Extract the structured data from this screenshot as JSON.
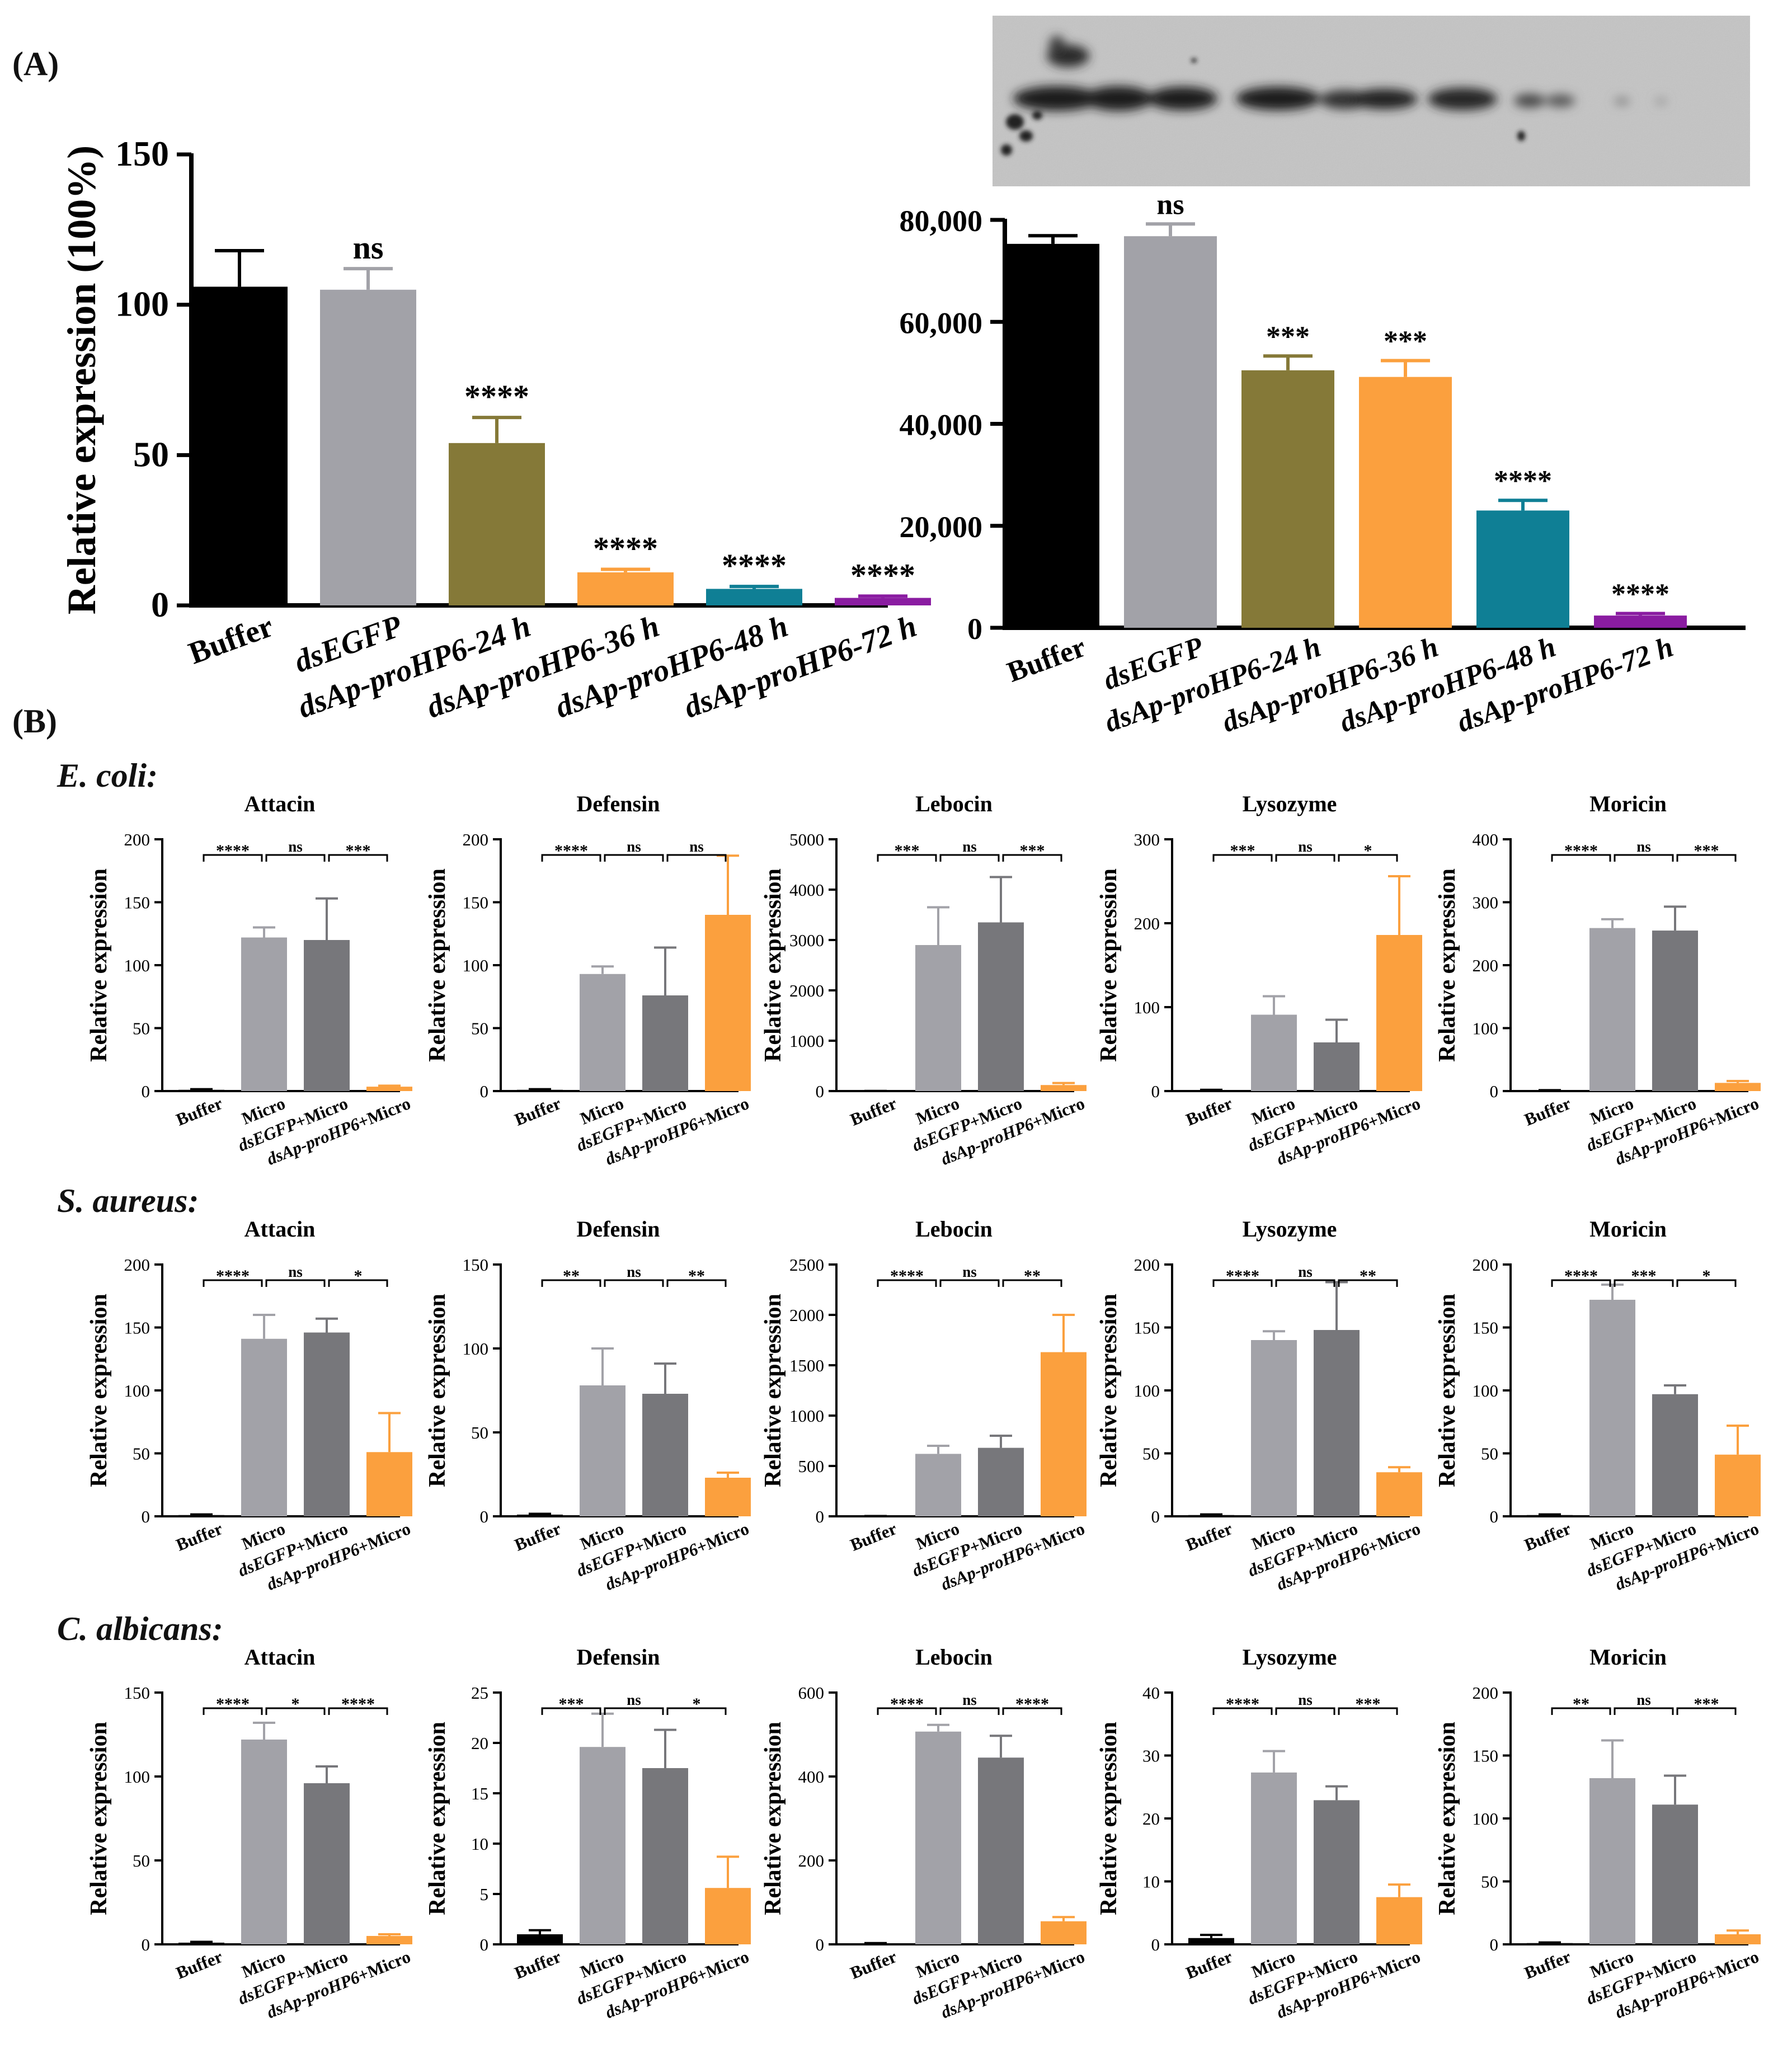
{
  "panels": {
    "a_label": "(A)",
    "b_label": "(B)"
  },
  "rows": [
    {
      "label": "E. coli",
      "colon": ":"
    },
    {
      "label": "S. aureus",
      "colon": ":"
    },
    {
      "label": "C. albicans",
      "colon": ":"
    }
  ],
  "colors": {
    "black": "#000000",
    "light_gray": "#a2a2a8",
    "dark_gray": "#77777b",
    "olive": "#857938",
    "orange": "#fba03e",
    "teal": "#0f7f95",
    "purple": "#8a1ca1"
  },
  "chart_data": [
    {
      "id": "A-qpcr",
      "type": "bar",
      "categories": [
        "Buffer",
        "dsEGFP",
        "dsAp-proHP6-24 h",
        "dsAp-proHP6-36 h",
        "dsAp-proHP6-48 h",
        "dsAp-proHP6-72 h"
      ],
      "italic_categories": [
        false,
        true,
        true,
        true,
        true,
        true
      ],
      "values": [
        106,
        105,
        54,
        11,
        5.5,
        2.5
      ],
      "errors": [
        12,
        7,
        8.5,
        1,
        0.8,
        0.6
      ],
      "colors": [
        "#000000",
        "#a2a2a8",
        "#857938",
        "#fba03e",
        "#0f7f95",
        "#8a1ca1"
      ],
      "significance": [
        "",
        "ns",
        "****",
        "****",
        "****",
        "****"
      ],
      "title": "",
      "xlabel": "",
      "ylabel": "Relative expression (100%)",
      "ylim": [
        0,
        150
      ],
      "yticks": [
        0,
        50,
        100,
        150
      ],
      "ytick_labels": [
        "0",
        "50",
        "100",
        "150"
      ]
    },
    {
      "id": "A-western",
      "type": "bar",
      "categories": [
        "Buffer",
        "dsEGFP",
        "dsAp-proHP6-24 h",
        "dsAp-proHP6-36 h",
        "dsAp-proHP6-48 h",
        "dsAp-proHP6-72 h"
      ],
      "italic_categories": [
        false,
        true,
        true,
        true,
        true,
        true
      ],
      "values": [
        75300,
        76800,
        50500,
        49200,
        23000,
        2400
      ],
      "errors": [
        1600,
        2400,
        2800,
        3200,
        2000,
        400
      ],
      "colors": [
        "#000000",
        "#a2a2a8",
        "#857938",
        "#fba03e",
        "#0f7f95",
        "#8a1ca1"
      ],
      "significance": [
        "",
        "ns",
        "***",
        "***",
        "****",
        "****"
      ],
      "title": "",
      "xlabel": "",
      "ylabel": "",
      "ylim": [
        0,
        80000
      ],
      "yticks": [
        0,
        20000,
        40000,
        60000,
        80000
      ],
      "ytick_labels": [
        "0",
        "20,000",
        "40,000",
        "60,000",
        "80,000"
      ]
    },
    {
      "id": "ecoli-attacin",
      "type": "bar",
      "title": "Attacin",
      "ylabel": "Relative expression",
      "categories": [
        "Buffer",
        "Micro",
        "dsEGFP+Micro",
        "dsAp-proHP6+Micro"
      ],
      "values": [
        1,
        122,
        120,
        3.5
      ],
      "errors": [
        0.5,
        8,
        33,
        0.8
      ],
      "ylim": [
        0,
        200
      ],
      "yticks": [
        0,
        50,
        100,
        150,
        200
      ],
      "ytick_labels": [
        "0",
        "50",
        "100",
        "150",
        "200"
      ],
      "significance": [
        "****",
        "ns",
        "***"
      ]
    },
    {
      "id": "ecoli-defensin",
      "type": "bar",
      "title": "Defensin",
      "ylabel": "Relative expression",
      "categories": [
        "Buffer",
        "Micro",
        "dsEGFP+Micro",
        "dsAp-proHP6+Micro"
      ],
      "values": [
        1,
        93,
        76,
        140
      ],
      "errors": [
        0.5,
        6,
        38,
        47
      ],
      "ylim": [
        0,
        200
      ],
      "yticks": [
        0,
        50,
        100,
        150,
        200
      ],
      "ytick_labels": [
        "0",
        "50",
        "100",
        "150",
        "200"
      ],
      "significance": [
        "****",
        "ns",
        "ns"
      ]
    },
    {
      "id": "ecoli-lebocin",
      "type": "bar",
      "title": "Lebocin",
      "ylabel": "Relative expression",
      "categories": [
        "Buffer",
        "Micro",
        "dsEGFP+Micro",
        "dsAp-proHP6+Micro"
      ],
      "values": [
        2,
        2900,
        3350,
        120
      ],
      "errors": [
        1,
        750,
        900,
        40
      ],
      "ylim": [
        0,
        5000
      ],
      "yticks": [
        0,
        1000,
        2000,
        3000,
        4000,
        5000
      ],
      "ytick_labels": [
        "0",
        "1000",
        "2000",
        "3000",
        "4000",
        "5000"
      ],
      "significance": [
        "***",
        "ns",
        "***"
      ]
    },
    {
      "id": "ecoli-lysozyme",
      "type": "bar",
      "title": "Lysozyme",
      "ylabel": "Relative expression",
      "categories": [
        "Buffer",
        "Micro",
        "dsEGFP+Micro",
        "dsAp-proHP6+Micro"
      ],
      "values": [
        1,
        91,
        58,
        186
      ],
      "errors": [
        0.5,
        22,
        27,
        70
      ],
      "ylim": [
        0,
        300
      ],
      "yticks": [
        0,
        100,
        200,
        300
      ],
      "ytick_labels": [
        "0",
        "100",
        "200",
        "300"
      ],
      "significance": [
        "***",
        "ns",
        "*"
      ]
    },
    {
      "id": "ecoli-moricin",
      "type": "bar",
      "title": "Moricin",
      "ylabel": "Relative expression",
      "categories": [
        "Buffer",
        "Micro",
        "dsEGFP+Micro",
        "dsAp-proHP6+Micro"
      ],
      "values": [
        1,
        259,
        255,
        13
      ],
      "errors": [
        0.5,
        14,
        38,
        3
      ],
      "ylim": [
        0,
        400
      ],
      "yticks": [
        0,
        100,
        200,
        300,
        400
      ],
      "ytick_labels": [
        "0",
        "100",
        "200",
        "300",
        "400"
      ],
      "significance": [
        "****",
        "ns",
        "***"
      ]
    },
    {
      "id": "saureus-attacin",
      "type": "bar",
      "title": "Attacin",
      "ylabel": "Relative expression",
      "categories": [
        "Buffer",
        "Micro",
        "dsEGFP+Micro",
        "dsAp-proHP6+Micro"
      ],
      "values": [
        1,
        141,
        146,
        51
      ],
      "errors": [
        0.5,
        19,
        11,
        31
      ],
      "ylim": [
        0,
        200
      ],
      "yticks": [
        0,
        50,
        100,
        150,
        200
      ],
      "ytick_labels": [
        "0",
        "50",
        "100",
        "150",
        "200"
      ],
      "significance": [
        "****",
        "ns",
        "*"
      ]
    },
    {
      "id": "saureus-defensin",
      "type": "bar",
      "title": "Defensin",
      "ylabel": "Relative expression",
      "categories": [
        "Buffer",
        "Micro",
        "dsEGFP+Micro",
        "dsAp-proHP6+Micro"
      ],
      "values": [
        1,
        78,
        73,
        23
      ],
      "errors": [
        0.5,
        22,
        18,
        3
      ],
      "ylim": [
        0,
        150
      ],
      "yticks": [
        0,
        50,
        100,
        150
      ],
      "ytick_labels": [
        "0",
        "50",
        "100",
        "150"
      ],
      "significance": [
        "**",
        "ns",
        "**"
      ]
    },
    {
      "id": "saureus-lebocin",
      "type": "bar",
      "title": "Lebocin",
      "ylabel": "Relative expression",
      "categories": [
        "Buffer",
        "Micro",
        "dsEGFP+Micro",
        "dsAp-proHP6+Micro"
      ],
      "values": [
        2,
        620,
        680,
        1630
      ],
      "errors": [
        1,
        80,
        120,
        370
      ],
      "ylim": [
        0,
        2500
      ],
      "yticks": [
        0,
        500,
        1000,
        1500,
        2000,
        2500
      ],
      "ytick_labels": [
        "0",
        "500",
        "1000",
        "1500",
        "2000",
        "2500"
      ],
      "significance": [
        "****",
        "ns",
        "**"
      ]
    },
    {
      "id": "saureus-lysozyme",
      "type": "bar",
      "title": "Lysozyme",
      "ylabel": "Relative expression",
      "categories": [
        "Buffer",
        "Micro",
        "dsEGFP+Micro",
        "dsAp-proHP6+Micro"
      ],
      "values": [
        1,
        140,
        148,
        35
      ],
      "errors": [
        0.5,
        7,
        38,
        4
      ],
      "ylim": [
        0,
        200
      ],
      "yticks": [
        0,
        50,
        100,
        150,
        200
      ],
      "ytick_labels": [
        "0",
        "50",
        "100",
        "150",
        "200"
      ],
      "significance": [
        "****",
        "ns",
        "**"
      ]
    },
    {
      "id": "saureus-moricin",
      "type": "bar",
      "title": "Moricin",
      "ylabel": "Relative expression",
      "categories": [
        "Buffer",
        "Micro",
        "dsEGFP+Micro",
        "dsAp-proHP6+Micro"
      ],
      "values": [
        1,
        172,
        97,
        49
      ],
      "errors": [
        0.5,
        12,
        7,
        23
      ],
      "ylim": [
        0,
        200
      ],
      "yticks": [
        0,
        50,
        100,
        150,
        200
      ],
      "ytick_labels": [
        "0",
        "50",
        "100",
        "150",
        "200"
      ],
      "significance": [
        "****",
        "***",
        "*"
      ]
    },
    {
      "id": "calbicans-attacin",
      "type": "bar",
      "title": "Attacin",
      "ylabel": "Relative expression",
      "categories": [
        "Buffer",
        "Micro",
        "dsEGFP+Micro",
        "dsAp-proHP6+Micro"
      ],
      "values": [
        1,
        122,
        96,
        5
      ],
      "errors": [
        0.5,
        10,
        10,
        1
      ],
      "ylim": [
        0,
        150
      ],
      "yticks": [
        0,
        50,
        100,
        150
      ],
      "ytick_labels": [
        "0",
        "50",
        "100",
        "150"
      ],
      "significance": [
        "****",
        "*",
        "****"
      ]
    },
    {
      "id": "calbicans-defensin",
      "type": "bar",
      "title": "Defensin",
      "ylabel": "Relative expression",
      "categories": [
        "Buffer",
        "Micro",
        "dsEGFP+Micro",
        "dsAp-proHP6+Micro"
      ],
      "values": [
        1,
        19.6,
        17.5,
        5.6
      ],
      "errors": [
        0.4,
        3.3,
        3.8,
        3.1
      ],
      "ylim": [
        0,
        25
      ],
      "yticks": [
        0,
        5,
        10,
        15,
        20,
        25
      ],
      "ytick_labels": [
        "0",
        "5",
        "10",
        "15",
        "20",
        "25"
      ],
      "significance": [
        "***",
        "ns",
        "*"
      ]
    },
    {
      "id": "calbicans-lebocin",
      "type": "bar",
      "title": "Lebocin",
      "ylabel": "Relative expression",
      "categories": [
        "Buffer",
        "Micro",
        "dsEGFP+Micro",
        "dsAp-proHP6+Micro"
      ],
      "values": [
        2,
        507,
        445,
        55
      ],
      "errors": [
        1,
        16,
        52,
        10
      ],
      "ylim": [
        0,
        600
      ],
      "yticks": [
        0,
        200,
        400,
        600
      ],
      "ytick_labels": [
        "0",
        "200",
        "400",
        "600"
      ],
      "significance": [
        "****",
        "ns",
        "****"
      ]
    },
    {
      "id": "calbicans-lysozyme",
      "type": "bar",
      "title": "Lysozyme",
      "ylabel": "Relative expression",
      "categories": [
        "Buffer",
        "Micro",
        "dsEGFP+Micro",
        "dsAp-proHP6+Micro"
      ],
      "values": [
        1,
        27.3,
        22.9,
        7.5
      ],
      "errors": [
        0.5,
        3.4,
        2.2,
        2
      ],
      "ylim": [
        0,
        40
      ],
      "yticks": [
        0,
        10,
        20,
        30,
        40
      ],
      "ytick_labels": [
        "0",
        "10",
        "20",
        "30",
        "40"
      ],
      "significance": [
        "****",
        "ns",
        "***"
      ]
    },
    {
      "id": "calbicans-moricin",
      "type": "bar",
      "title": "Moricin",
      "ylabel": "Relative expression",
      "categories": [
        "Buffer",
        "Micro",
        "dsEGFP+Micro",
        "dsAp-proHP6+Micro"
      ],
      "values": [
        1,
        132,
        111,
        8
      ],
      "errors": [
        0.5,
        30,
        23,
        3
      ],
      "ylim": [
        0,
        200
      ],
      "yticks": [
        0,
        50,
        100,
        150,
        200
      ],
      "ytick_labels": [
        "0",
        "50",
        "100",
        "150",
        "200"
      ],
      "significance": [
        "**",
        "ns",
        "***"
      ]
    }
  ]
}
